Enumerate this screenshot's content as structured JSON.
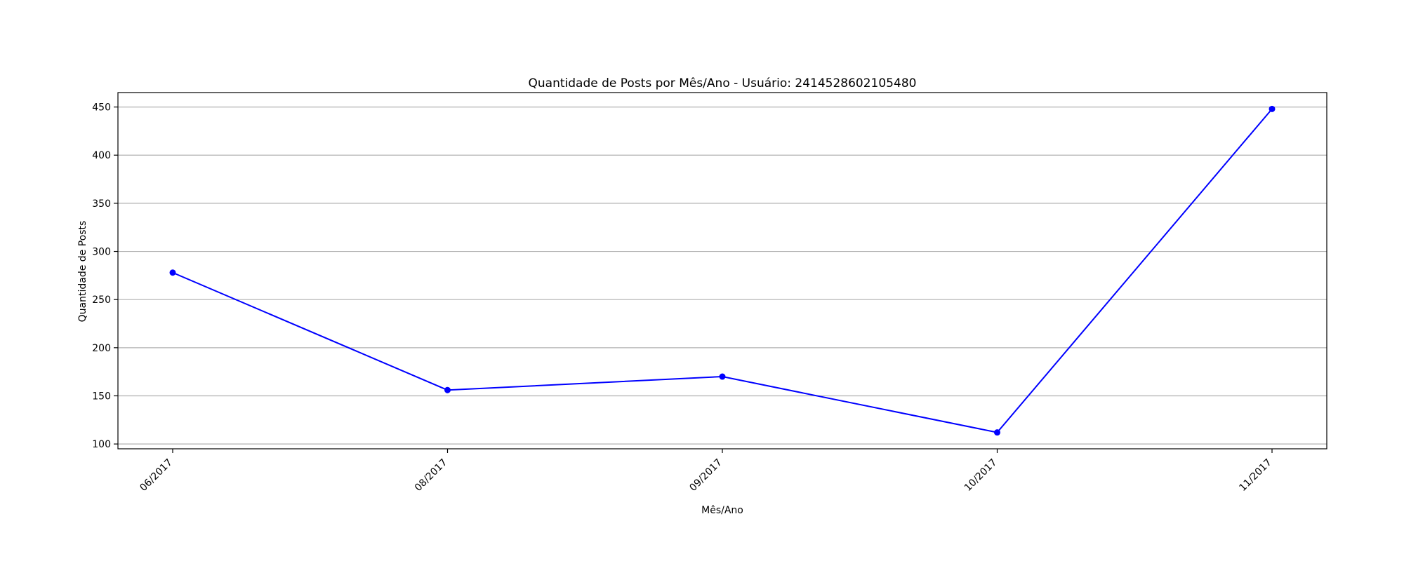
{
  "chart_data": {
    "type": "line",
    "title": "Quantidade de Posts por Mês/Ano - Usuário: 2414528602105480",
    "xlabel": "Mês/Ano",
    "ylabel": "Quantidade de Posts",
    "categories": [
      "06/2017",
      "08/2017",
      "09/2017",
      "10/2017",
      "11/2017"
    ],
    "series": [
      {
        "values": [
          278,
          156,
          170,
          112,
          448
        ]
      }
    ],
    "ylim": [
      95,
      465
    ],
    "yticks": [
      100,
      150,
      200,
      250,
      300,
      350,
      400,
      450
    ],
    "grid": "y-axis",
    "line_color": "#0000ff",
    "marker": "circle"
  }
}
